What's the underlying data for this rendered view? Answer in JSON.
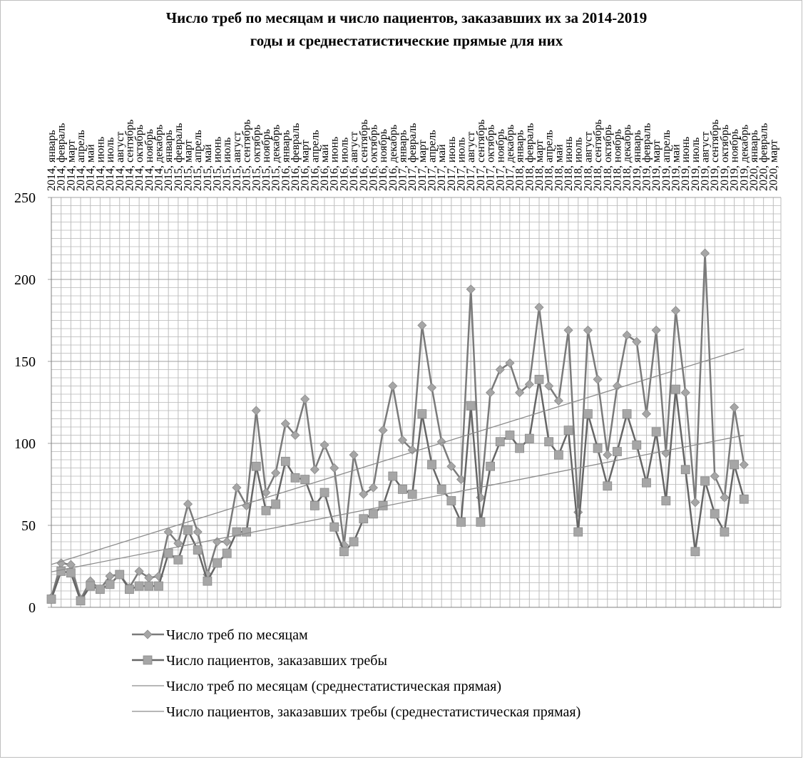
{
  "chart_data": {
    "type": "line",
    "title": [
      "Число треб по месяцам и число пациентов, заказавших их за 2014-2019",
      "годы и среднестатистические прямые для них"
    ],
    "categories": [
      "2014, январь",
      "2014, февраль",
      "2014, март",
      "2014, апрель",
      "2014, май",
      "2014, июнь",
      "2014, июль",
      "2014, август",
      "2014, сентябрь",
      "2014, октябрь",
      "2014, ноябрь",
      "2014, декабрь",
      "2015, январь",
      "2015, февраль",
      "2015, март",
      "2015, апрель",
      "2015, май",
      "2015, июнь",
      "2015, июль",
      "2015, август",
      "2015, сентябрь",
      "2015, октябрь",
      "2015, ноябрь",
      "2015, декабрь",
      "2016, январь",
      "2016, февраль",
      "2016, март",
      "2016, апрель",
      "2016, май",
      "2016, июнь",
      "2016, июль",
      "2016, август",
      "2016, сентябрь",
      "2016, октябрь",
      "2016, ноябрь",
      "2016, декабрь",
      "2017, январь",
      "2017, февраль",
      "2017, март",
      "2017, апрель",
      "2017, май",
      "2017, июнь",
      "2017, июль",
      "2017, август",
      "2017, сентябрь",
      "2017, октябрь",
      "2017, ноябрь",
      "2017, декабрь",
      "2018, январь",
      "2018, февраль",
      "2018, март",
      "2018, апрель",
      "2018, май",
      "2018, июнь",
      "2018, июль",
      "2018, август",
      "2018, сентябрь",
      "2018, октябрь",
      "2018, ноябрь",
      "2018, декабрь",
      "2019, январь",
      "2019, февраль",
      "2019, март",
      "2019, апрель",
      "2019, май",
      "2019, июнь",
      "2019, июль",
      "2019, август",
      "2019, сентябрь",
      "2019, октябрь",
      "2019, ноябрь",
      "2019, декабрь",
      "2020, январь",
      "2020, февраль",
      "2020, март"
    ],
    "series": [
      {
        "name": "Число треб по месяцам",
        "color": "#7a7a7a",
        "marker": "diamond",
        "marker_color": "#a6a6a6",
        "values": [
          6,
          27,
          26,
          5,
          16,
          11,
          19,
          20,
          12,
          22,
          18,
          19,
          46,
          39,
          63,
          46,
          20,
          40,
          40,
          73,
          62,
          120,
          70,
          82,
          112,
          105,
          127,
          84,
          99,
          85,
          38,
          93,
          69,
          73,
          108,
          135,
          102,
          96,
          172,
          134,
          101,
          86,
          78,
          194,
          67,
          131,
          145,
          149,
          131,
          136,
          183,
          135,
          126,
          169,
          58,
          169,
          139,
          93,
          135,
          166,
          162,
          118,
          169,
          94,
          181,
          131,
          64,
          216,
          80,
          67,
          122,
          87,
          null,
          null,
          null
        ]
      },
      {
        "name": "Число пациентов, заказавших требы",
        "color": "#666666",
        "marker": "square",
        "marker_color": "#a6a6a6",
        "values": [
          5,
          22,
          21,
          4,
          13,
          11,
          14,
          20,
          11,
          13,
          13,
          13,
          33,
          29,
          47,
          35,
          16,
          27,
          33,
          46,
          46,
          86,
          59,
          63,
          89,
          79,
          78,
          62,
          70,
          49,
          34,
          40,
          54,
          57,
          62,
          80,
          72,
          69,
          118,
          87,
          72,
          65,
          52,
          123,
          52,
          86,
          101,
          105,
          97,
          103,
          139,
          101,
          93,
          108,
          46,
          118,
          97,
          74,
          95,
          118,
          99,
          76,
          107,
          65,
          133,
          84,
          34,
          77,
          57,
          46,
          87,
          66,
          null,
          null,
          null
        ]
      },
      {
        "name": "Число треб по месяцам (среднестатистическая прямая)",
        "color": "#8c8c8c",
        "trend_of": 0
      },
      {
        "name": "Число пациентов, заказавших требы (среднестатистическая прямая)",
        "color": "#8c8c8c",
        "trend_of": 1
      }
    ],
    "ylim": [
      0,
      250
    ],
    "yticks": [
      0,
      50,
      100,
      150,
      200,
      250
    ],
    "grid": true,
    "minor_grid_step": 5,
    "legend": "bottom"
  }
}
